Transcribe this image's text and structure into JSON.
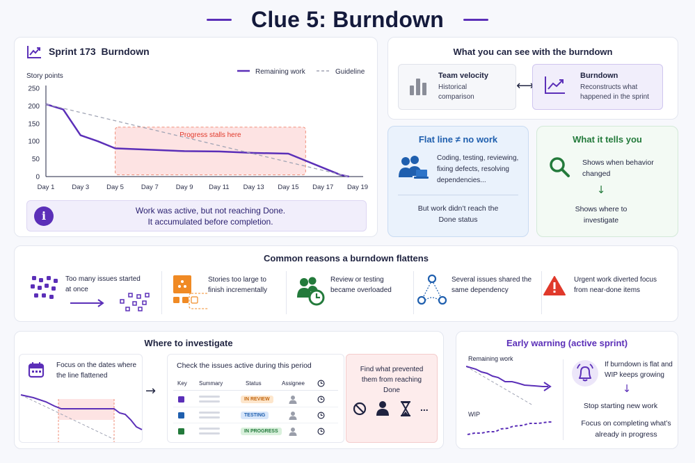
{
  "title": "Clue 5: Burndown",
  "burndown": {
    "heading": "Sprint 173  Burndown",
    "legend_remaining": "Remaining work",
    "legend_guideline": "Guideline",
    "annotation": "Progress stalls here",
    "info_line1": "Work was active, but not reaching Done.",
    "info_line2": "It accumulated before completion."
  },
  "chart_data": {
    "type": "line",
    "title": "Sprint 173  Burndown",
    "ylabel": "Story points",
    "xlabel": "",
    "ylim": [
      0,
      250
    ],
    "yticks": [
      0,
      50,
      100,
      150,
      200,
      250
    ],
    "x_ticks": [
      "Day 1",
      "Day 3",
      "Day 5",
      "Day 7",
      "Day 9",
      "Day 11",
      "Day 13",
      "Day 15",
      "Day 17",
      "Day 19"
    ],
    "grid": false,
    "legend": "top-right",
    "series": [
      {
        "name": "Remaining work",
        "color": "#5b2fb8",
        "style": "solid",
        "points": [
          [
            1,
            205
          ],
          [
            2,
            190
          ],
          [
            3,
            117
          ],
          [
            4,
            100
          ],
          [
            5,
            80
          ],
          [
            7,
            76
          ],
          [
            9,
            72
          ],
          [
            11,
            71
          ],
          [
            13,
            67
          ],
          [
            15,
            65
          ],
          [
            17,
            25
          ],
          [
            18,
            5
          ],
          [
            18.5,
            0
          ]
        ]
      },
      {
        "name": "Guideline",
        "color": "#a0a4b4",
        "style": "dashed",
        "points": [
          [
            1,
            205
          ],
          [
            18.5,
            0
          ]
        ]
      }
    ],
    "highlight": {
      "x_range": [
        5,
        16
      ],
      "y_range": [
        5,
        140
      ],
      "label": "Progress stalls here"
    }
  },
  "see": {
    "heading": "What you can see with the burndown",
    "velocity_title": "Team velocity",
    "velocity_desc": "Historical comparison",
    "arrow": "⟷",
    "burndown_title": "Burndown",
    "burndown_desc": "Reconstructs what happened in the sprint"
  },
  "flat": {
    "heading": "Flat line ≠ no work",
    "text": "Coding, testing, reviewing, fixing defects, resolving dependencies...",
    "footer": "But work didn’t reach the Done status"
  },
  "tells": {
    "heading": "What it tells you",
    "line1": "Shows when behavior changed",
    "arrow": "↓",
    "line2": "Shows where to investigate"
  },
  "reasons": {
    "heading": "Common reasons a burndown flattens",
    "items": [
      {
        "text": "Too many issues started at once",
        "icon": "dots-cluster-icon"
      },
      {
        "text": "Stories too large to finish incrementally",
        "icon": "large-story-icon"
      },
      {
        "text": "Review or testing became overloaded",
        "icon": "overloaded-reviewers-icon"
      },
      {
        "text": "Several issues shared the same dependency",
        "icon": "shared-dependency-icon"
      },
      {
        "text": "Urgent work diverted focus from near-done items",
        "icon": "warning-icon"
      }
    ]
  },
  "investigate": {
    "heading": "Where to investigate",
    "dates_text": "Focus on the dates where the line flattened",
    "arrow": "→",
    "table_title": "Check the issues active during this period",
    "columns": [
      "Key",
      "Summary",
      "Status",
      "Assignee",
      ""
    ],
    "rows": [
      {
        "status": "IN REVIEW"
      },
      {
        "status": "TESTING"
      },
      {
        "status": "IN PROGRESS"
      }
    ],
    "prevent_text": "Find what prevented them from reaching Done",
    "ellipsis": "..."
  },
  "warning": {
    "heading": "Early warning (active sprint)",
    "remaining_label": "Remaining work",
    "wip_label": "WIP",
    "condition": "If burndown is flat and WIP keeps growing",
    "arrow": "↓",
    "action1": "Stop starting new work",
    "action2": "Focus on completing what’s already in progress"
  },
  "colors": {
    "accent": "#5b2fb8",
    "blue": "#1f5fae",
    "green": "#237a3b",
    "red": "#e0392b",
    "orange": "#f08a24",
    "highlight_fill": "#fde3e3",
    "highlight_stroke": "#f08f7a"
  }
}
